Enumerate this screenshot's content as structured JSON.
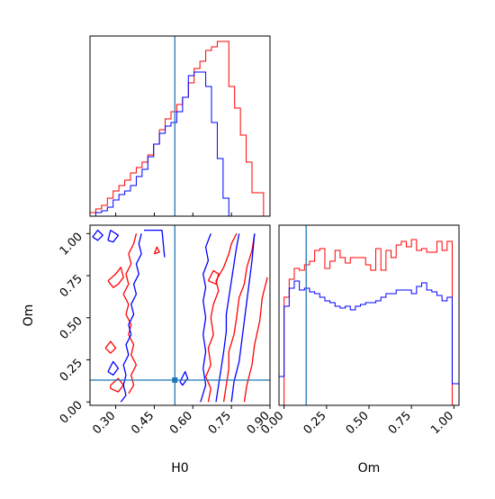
{
  "chart_data": [
    {
      "type": "histogram",
      "panel": "H0 marginal",
      "xlim": [
        0.2,
        0.9
      ],
      "ylim": [
        0,
        1.0
      ],
      "truth": 0.53,
      "truth_color": "#1f77b4",
      "series": [
        {
          "color": "#ff0000",
          "edges": [
            0.2,
            0.2225,
            0.245,
            0.2675,
            0.29,
            0.3125,
            0.335,
            0.3575,
            0.38,
            0.4025,
            0.425,
            0.4475,
            0.47,
            0.4925,
            0.515,
            0.5375,
            0.56,
            0.5825,
            0.605,
            0.6275,
            0.65,
            0.6725,
            0.695,
            0.7175,
            0.74,
            0.7625,
            0.785,
            0.8075,
            0.83,
            0.8525,
            0.875,
            0.9
          ],
          "counts": [
            0.02,
            0.04,
            0.06,
            0.1,
            0.14,
            0.17,
            0.2,
            0.24,
            0.27,
            0.3,
            0.34,
            0.4,
            0.48,
            0.54,
            0.58,
            0.62,
            0.66,
            0.74,
            0.82,
            0.86,
            0.92,
            0.94,
            0.97,
            0.97,
            0.72,
            0.6,
            0.45,
            0.3,
            0.13,
            0.13,
            0.0
          ]
        },
        {
          "color": "#0000ff",
          "edges": [
            0.2,
            0.2225,
            0.245,
            0.2675,
            0.29,
            0.3125,
            0.335,
            0.3575,
            0.38,
            0.4025,
            0.425,
            0.4475,
            0.47,
            0.4925,
            0.515,
            0.5375,
            0.56,
            0.5825,
            0.605,
            0.6275,
            0.65,
            0.6725,
            0.695,
            0.7175,
            0.74,
            0.7625,
            0.785,
            0.8075,
            0.83,
            0.8525,
            0.875,
            0.9
          ],
          "counts": [
            0.0,
            0.02,
            0.03,
            0.05,
            0.09,
            0.12,
            0.14,
            0.17,
            0.22,
            0.26,
            0.33,
            0.4,
            0.46,
            0.5,
            0.52,
            0.58,
            0.66,
            0.78,
            0.8,
            0.8,
            0.72,
            0.52,
            0.32,
            0.1,
            0.0,
            0.0,
            0.0,
            0.0,
            0.0,
            0.0,
            0.0
          ]
        }
      ]
    },
    {
      "type": "contour",
      "panel": "H0 vs Om",
      "xlabel": "H0",
      "ylabel": "Om",
      "xlim": [
        0.2,
        0.9
      ],
      "ylim": [
        -0.02,
        1.05
      ],
      "xticks": [
        "0.30",
        "0.45",
        "0.60",
        "0.75",
        "0.90"
      ],
      "xtick_values": [
        0.3,
        0.45,
        0.6,
        0.75,
        0.9
      ],
      "yticks": [
        "0.00",
        "0.25",
        "0.50",
        "0.75",
        "1.00"
      ],
      "ytick_values": [
        0.0,
        0.25,
        0.5,
        0.75,
        1.0
      ],
      "truth": [
        0.53,
        0.13
      ],
      "truth_color": "#1f77b4",
      "contours": [
        {
          "color": "#ff0000",
          "points": [
            [
              0.66,
              0.0
            ],
            [
              0.67,
              0.08
            ],
            [
              0.65,
              0.15
            ],
            [
              0.67,
              0.22
            ],
            [
              0.66,
              0.32
            ],
            [
              0.68,
              0.4
            ],
            [
              0.67,
              0.5
            ],
            [
              0.68,
              0.58
            ],
            [
              0.7,
              0.66
            ],
            [
              0.69,
              0.72
            ],
            [
              0.72,
              0.8
            ],
            [
              0.74,
              0.88
            ],
            [
              0.75,
              0.94
            ],
            [
              0.77,
              1.0
            ]
          ]
        },
        {
          "color": "#ff0000",
          "points": [
            [
              0.72,
              0.0
            ],
            [
              0.73,
              0.1
            ],
            [
              0.74,
              0.2
            ],
            [
              0.74,
              0.3
            ],
            [
              0.76,
              0.4
            ],
            [
              0.77,
              0.5
            ],
            [
              0.78,
              0.62
            ],
            [
              0.8,
              0.7
            ],
            [
              0.81,
              0.8
            ],
            [
              0.83,
              0.9
            ],
            [
              0.84,
              1.0
            ]
          ]
        },
        {
          "color": "#ff0000",
          "points": [
            [
              0.8,
              0.0
            ],
            [
              0.81,
              0.1
            ],
            [
              0.83,
              0.22
            ],
            [
              0.84,
              0.34
            ],
            [
              0.86,
              0.48
            ],
            [
              0.87,
              0.62
            ],
            [
              0.89,
              0.74
            ]
          ]
        },
        {
          "color": "#ff0000",
          "points": [
            [
              0.38,
              1.0
            ],
            [
              0.37,
              0.94
            ],
            [
              0.35,
              0.88
            ],
            [
              0.36,
              0.82
            ],
            [
              0.34,
              0.76
            ],
            [
              0.35,
              0.7
            ],
            [
              0.33,
              0.64
            ],
            [
              0.35,
              0.58
            ],
            [
              0.34,
              0.52
            ],
            [
              0.36,
              0.46
            ],
            [
              0.35,
              0.4
            ],
            [
              0.37,
              0.34
            ],
            [
              0.36,
              0.28
            ],
            [
              0.38,
              0.22
            ],
            [
              0.36,
              0.16
            ],
            [
              0.37,
              0.1
            ],
            [
              0.35,
              0.05
            ]
          ]
        },
        {
          "color": "#ff0000",
          "points": [
            [
              0.27,
              0.72
            ],
            [
              0.3,
              0.76
            ],
            [
              0.32,
              0.8
            ],
            [
              0.33,
              0.74
            ],
            [
              0.31,
              0.7
            ],
            [
              0.29,
              0.68
            ],
            [
              0.27,
              0.72
            ]
          ]
        },
        {
          "color": "#ff0000",
          "points": [
            [
              0.26,
              0.32
            ],
            [
              0.28,
              0.36
            ],
            [
              0.3,
              0.32
            ],
            [
              0.28,
              0.29
            ],
            [
              0.26,
              0.32
            ]
          ]
        },
        {
          "color": "#ff0000",
          "points": [
            [
              0.28,
              0.1
            ],
            [
              0.31,
              0.14
            ],
            [
              0.33,
              0.1
            ],
            [
              0.31,
              0.06
            ],
            [
              0.28,
              0.08
            ],
            [
              0.28,
              0.1
            ]
          ]
        },
        {
          "color": "#ff0000",
          "points": [
            [
              0.45,
              0.88
            ],
            [
              0.46,
              0.92
            ],
            [
              0.47,
              0.89
            ],
            [
              0.45,
              0.88
            ]
          ]
        },
        {
          "color": "#ff0000",
          "points": [
            [
              0.66,
              0.72
            ],
            [
              0.68,
              0.78
            ],
            [
              0.7,
              0.76
            ],
            [
              0.69,
              0.7
            ],
            [
              0.66,
              0.72
            ]
          ]
        },
        {
          "color": "#0000ff",
          "points": [
            [
              0.63,
              0.0
            ],
            [
              0.65,
              0.1
            ],
            [
              0.64,
              0.2
            ],
            [
              0.65,
              0.3
            ],
            [
              0.64,
              0.4
            ],
            [
              0.65,
              0.5
            ],
            [
              0.64,
              0.6
            ],
            [
              0.65,
              0.68
            ],
            [
              0.64,
              0.76
            ],
            [
              0.66,
              0.84
            ],
            [
              0.65,
              0.92
            ],
            [
              0.67,
              1.0
            ]
          ]
        },
        {
          "color": "#0000ff",
          "points": [
            [
              0.69,
              0.0
            ],
            [
              0.7,
              0.1
            ],
            [
              0.71,
              0.2
            ],
            [
              0.72,
              0.3
            ],
            [
              0.73,
              0.42
            ],
            [
              0.73,
              0.52
            ],
            [
              0.74,
              0.62
            ],
            [
              0.75,
              0.72
            ],
            [
              0.76,
              0.82
            ],
            [
              0.77,
              0.92
            ],
            [
              0.78,
              1.0
            ]
          ]
        },
        {
          "color": "#0000ff",
          "points": [
            [
              0.75,
              0.0
            ],
            [
              0.76,
              0.12
            ],
            [
              0.78,
              0.24
            ],
            [
              0.79,
              0.36
            ],
            [
              0.8,
              0.48
            ],
            [
              0.81,
              0.6
            ],
            [
              0.82,
              0.72
            ],
            [
              0.83,
              0.84
            ],
            [
              0.84,
              1.0
            ]
          ]
        },
        {
          "color": "#0000ff",
          "points": [
            [
              0.4,
              1.0
            ],
            [
              0.39,
              0.94
            ],
            [
              0.4,
              0.88
            ],
            [
              0.38,
              0.82
            ],
            [
              0.39,
              0.76
            ],
            [
              0.37,
              0.7
            ],
            [
              0.38,
              0.64
            ],
            [
              0.36,
              0.58
            ],
            [
              0.37,
              0.52
            ],
            [
              0.35,
              0.46
            ],
            [
              0.36,
              0.4
            ],
            [
              0.34,
              0.34
            ],
            [
              0.35,
              0.28
            ],
            [
              0.33,
              0.22
            ],
            [
              0.34,
              0.16
            ],
            [
              0.33,
              0.1
            ],
            [
              0.34,
              0.04
            ],
            [
              0.32,
              0.0
            ]
          ]
        },
        {
          "color": "#0000ff",
          "points": [
            [
              0.21,
              0.98
            ],
            [
              0.23,
              1.02
            ],
            [
              0.25,
              0.99
            ],
            [
              0.23,
              0.96
            ],
            [
              0.21,
              0.98
            ]
          ]
        },
        {
          "color": "#0000ff",
          "points": [
            [
              0.27,
              0.96
            ],
            [
              0.28,
              1.02
            ],
            [
              0.31,
              0.99
            ],
            [
              0.29,
              0.95
            ],
            [
              0.27,
              0.96
            ]
          ]
        },
        {
          "color": "#0000ff",
          "points": [
            [
              0.41,
              1.02
            ],
            [
              0.48,
              1.02
            ],
            [
              0.49,
              0.86
            ]
          ]
        },
        {
          "color": "#0000ff",
          "points": [
            [
              0.55,
              0.12
            ],
            [
              0.57,
              0.18
            ],
            [
              0.58,
              0.14
            ],
            [
              0.56,
              0.1
            ],
            [
              0.55,
              0.12
            ]
          ]
        },
        {
          "color": "#0000ff",
          "points": [
            [
              0.27,
              0.18
            ],
            [
              0.29,
              0.24
            ],
            [
              0.31,
              0.2
            ],
            [
              0.29,
              0.16
            ],
            [
              0.27,
              0.18
            ]
          ]
        }
      ]
    },
    {
      "type": "histogram",
      "panel": "Om marginal",
      "xlabel": "Om",
      "xlim": [
        -0.03,
        1.03
      ],
      "ylim": [
        0,
        1.0
      ],
      "xticks": [
        "0.00",
        "0.25",
        "0.50",
        "0.75",
        "1.00"
      ],
      "xtick_values": [
        0.0,
        0.25,
        0.5,
        0.75,
        1.0
      ],
      "truth": 0.13,
      "truth_color": "#1f77b4",
      "series": [
        {
          "color": "#ff0000",
          "edges": [
            -0.03,
            0.0,
            0.03,
            0.06,
            0.09,
            0.12,
            0.15,
            0.18,
            0.21,
            0.24,
            0.27,
            0.3,
            0.33,
            0.36,
            0.39,
            0.42,
            0.45,
            0.48,
            0.51,
            0.54,
            0.57,
            0.6,
            0.63,
            0.66,
            0.69,
            0.72,
            0.75,
            0.78,
            0.81,
            0.84,
            0.87,
            0.9,
            0.93,
            0.96,
            0.99,
            1.03
          ],
          "counts": [
            0.0,
            0.6,
            0.7,
            0.76,
            0.75,
            0.78,
            0.8,
            0.86,
            0.87,
            0.76,
            0.8,
            0.86,
            0.82,
            0.79,
            0.82,
            0.82,
            0.82,
            0.78,
            0.75,
            0.87,
            0.75,
            0.86,
            0.82,
            0.89,
            0.91,
            0.88,
            0.92,
            0.86,
            0.87,
            0.85,
            0.85,
            0.91,
            0.86,
            0.91,
            0.0
          ]
        },
        {
          "color": "#0000ff",
          "edges": [
            -0.03,
            0.0,
            0.03,
            0.06,
            0.09,
            0.12,
            0.15,
            0.18,
            0.21,
            0.24,
            0.27,
            0.3,
            0.33,
            0.36,
            0.39,
            0.42,
            0.45,
            0.48,
            0.51,
            0.54,
            0.57,
            0.6,
            0.63,
            0.66,
            0.69,
            0.72,
            0.75,
            0.78,
            0.81,
            0.84,
            0.87,
            0.9,
            0.93,
            0.96,
            0.99,
            1.03
          ],
          "counts": [
            0.16,
            0.55,
            0.65,
            0.69,
            0.64,
            0.65,
            0.63,
            0.62,
            0.6,
            0.58,
            0.57,
            0.55,
            0.54,
            0.55,
            0.53,
            0.55,
            0.56,
            0.57,
            0.57,
            0.58,
            0.6,
            0.62,
            0.62,
            0.64,
            0.64,
            0.64,
            0.62,
            0.66,
            0.68,
            0.64,
            0.63,
            0.61,
            0.58,
            0.6,
            0.12
          ]
        }
      ]
    }
  ]
}
